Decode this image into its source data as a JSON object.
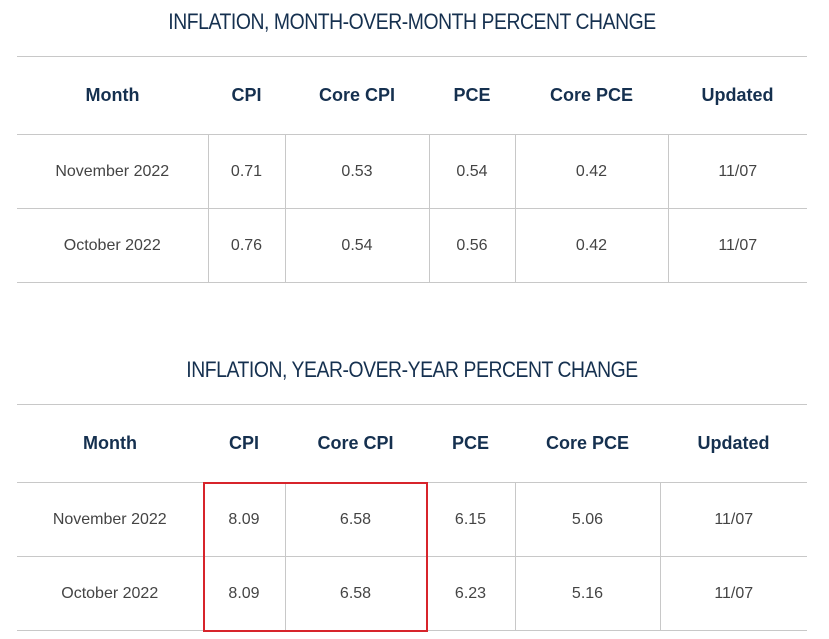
{
  "mom": {
    "title": "INFLATION, MONTH-OVER-MONTH PERCENT CHANGE",
    "headers": [
      "Month",
      "CPI",
      "Core CPI",
      "PCE",
      "Core PCE",
      "Updated"
    ],
    "rows": [
      [
        "November 2022",
        "0.71",
        "0.53",
        "0.54",
        "0.42",
        "11/07"
      ],
      [
        "October 2022",
        "0.76",
        "0.54",
        "0.56",
        "0.42",
        "11/07"
      ]
    ]
  },
  "yoy": {
    "title": "INFLATION, YEAR-OVER-YEAR PERCENT CHANGE",
    "headers": [
      "Month",
      "CPI",
      "Core CPI",
      "PCE",
      "Core PCE",
      "Updated"
    ],
    "rows": [
      [
        "November 2022",
        "8.09",
        "6.58",
        "6.15",
        "5.06",
        "11/07"
      ],
      [
        "October 2022",
        "8.09",
        "6.58",
        "6.23",
        "5.16",
        "11/07"
      ]
    ]
  },
  "colors": {
    "title": "#15304f",
    "header": "#15304f",
    "cell_text": "#444444",
    "rule": "#c8c8c8",
    "highlight": "#d7242b"
  }
}
